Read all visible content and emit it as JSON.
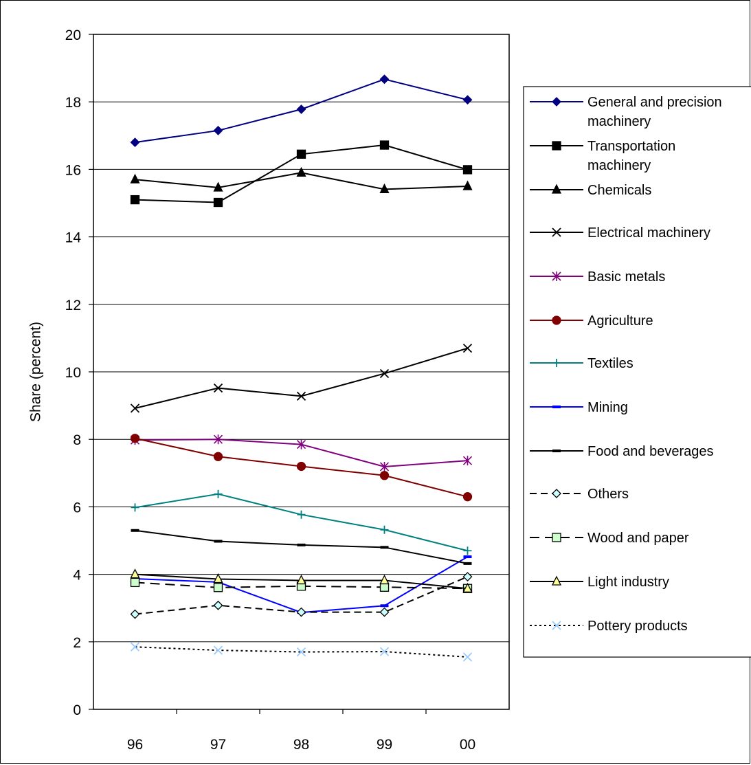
{
  "chart_data": {
    "type": "line",
    "title": "",
    "xlabel": "",
    "ylabel": "Share (percent)",
    "categories": [
      "96",
      "97",
      "98",
      "99",
      "00"
    ],
    "ylim": [
      0,
      20
    ],
    "yticks": [
      "0",
      "2",
      "4",
      "6",
      "8",
      "10",
      "12",
      "14",
      "16",
      "18",
      "20"
    ],
    "grid": "horizontal",
    "legend": "right",
    "series": [
      {
        "name": "General and precision machinery",
        "values": [
          16.8,
          17.15,
          17.78,
          18.67,
          18.06
        ],
        "color": "#000080",
        "dash": "",
        "marker": "diamond",
        "fill": "#000080"
      },
      {
        "name": "Transportation machinery",
        "values": [
          15.1,
          15.02,
          16.45,
          16.72,
          15.99
        ],
        "color": "#000000",
        "dash": "",
        "marker": "square",
        "fill": "#000000"
      },
      {
        "name": "Chemicals",
        "values": [
          15.7,
          15.46,
          15.9,
          15.41,
          15.5
        ],
        "color": "#000000",
        "dash": "",
        "marker": "triangle",
        "fill": "#000000"
      },
      {
        "name": "Electrical machinery",
        "values": [
          8.92,
          9.52,
          9.28,
          9.95,
          10.7
        ],
        "color": "#000000",
        "dash": "",
        "marker": "x",
        "fill": "none"
      },
      {
        "name": "Basic metals",
        "values": [
          7.98,
          8.0,
          7.85,
          7.19,
          7.37
        ],
        "color": "#800080",
        "dash": "",
        "marker": "star",
        "fill": "none"
      },
      {
        "name": "Agriculture",
        "values": [
          8.03,
          7.49,
          7.2,
          6.93,
          6.3
        ],
        "color": "#800000",
        "dash": "",
        "marker": "circle",
        "fill": "#800000"
      },
      {
        "name": "Textiles",
        "values": [
          5.98,
          6.38,
          5.77,
          5.32,
          4.7
        ],
        "color": "#008080",
        "dash": "",
        "marker": "plus",
        "fill": "none"
      },
      {
        "name": "Mining",
        "values": [
          3.87,
          3.77,
          2.87,
          3.07,
          4.52
        ],
        "color": "#0000ff",
        "dash": "",
        "marker": "dash",
        "fill": "#0000ff"
      },
      {
        "name": "Food and beverages",
        "values": [
          5.3,
          4.98,
          4.87,
          4.8,
          4.32
        ],
        "color": "#000000",
        "dash": "",
        "marker": "dash",
        "fill": "#000000"
      },
      {
        "name": "Others",
        "values": [
          2.82,
          3.08,
          2.88,
          2.88,
          3.93
        ],
        "color": "#000000",
        "dash": "10,6",
        "marker": "diamond",
        "fill": "#ccffff"
      },
      {
        "name": "Wood and paper",
        "values": [
          3.76,
          3.61,
          3.65,
          3.62,
          3.58
        ],
        "color": "#000000",
        "dash": "14,8",
        "marker": "square",
        "fill": "#ccffcc"
      },
      {
        "name": "Light industry",
        "values": [
          4.0,
          3.86,
          3.82,
          3.82,
          3.58
        ],
        "color": "#000000",
        "dash": "",
        "marker": "triangle",
        "fill": "#ffff99"
      },
      {
        "name": "Pottery products",
        "values": [
          1.85,
          1.75,
          1.7,
          1.71,
          1.55
        ],
        "color": "#000000",
        "dash": "3,4",
        "marker": "x",
        "fill": "none",
        "markerColor": "#99ccff"
      }
    ]
  }
}
